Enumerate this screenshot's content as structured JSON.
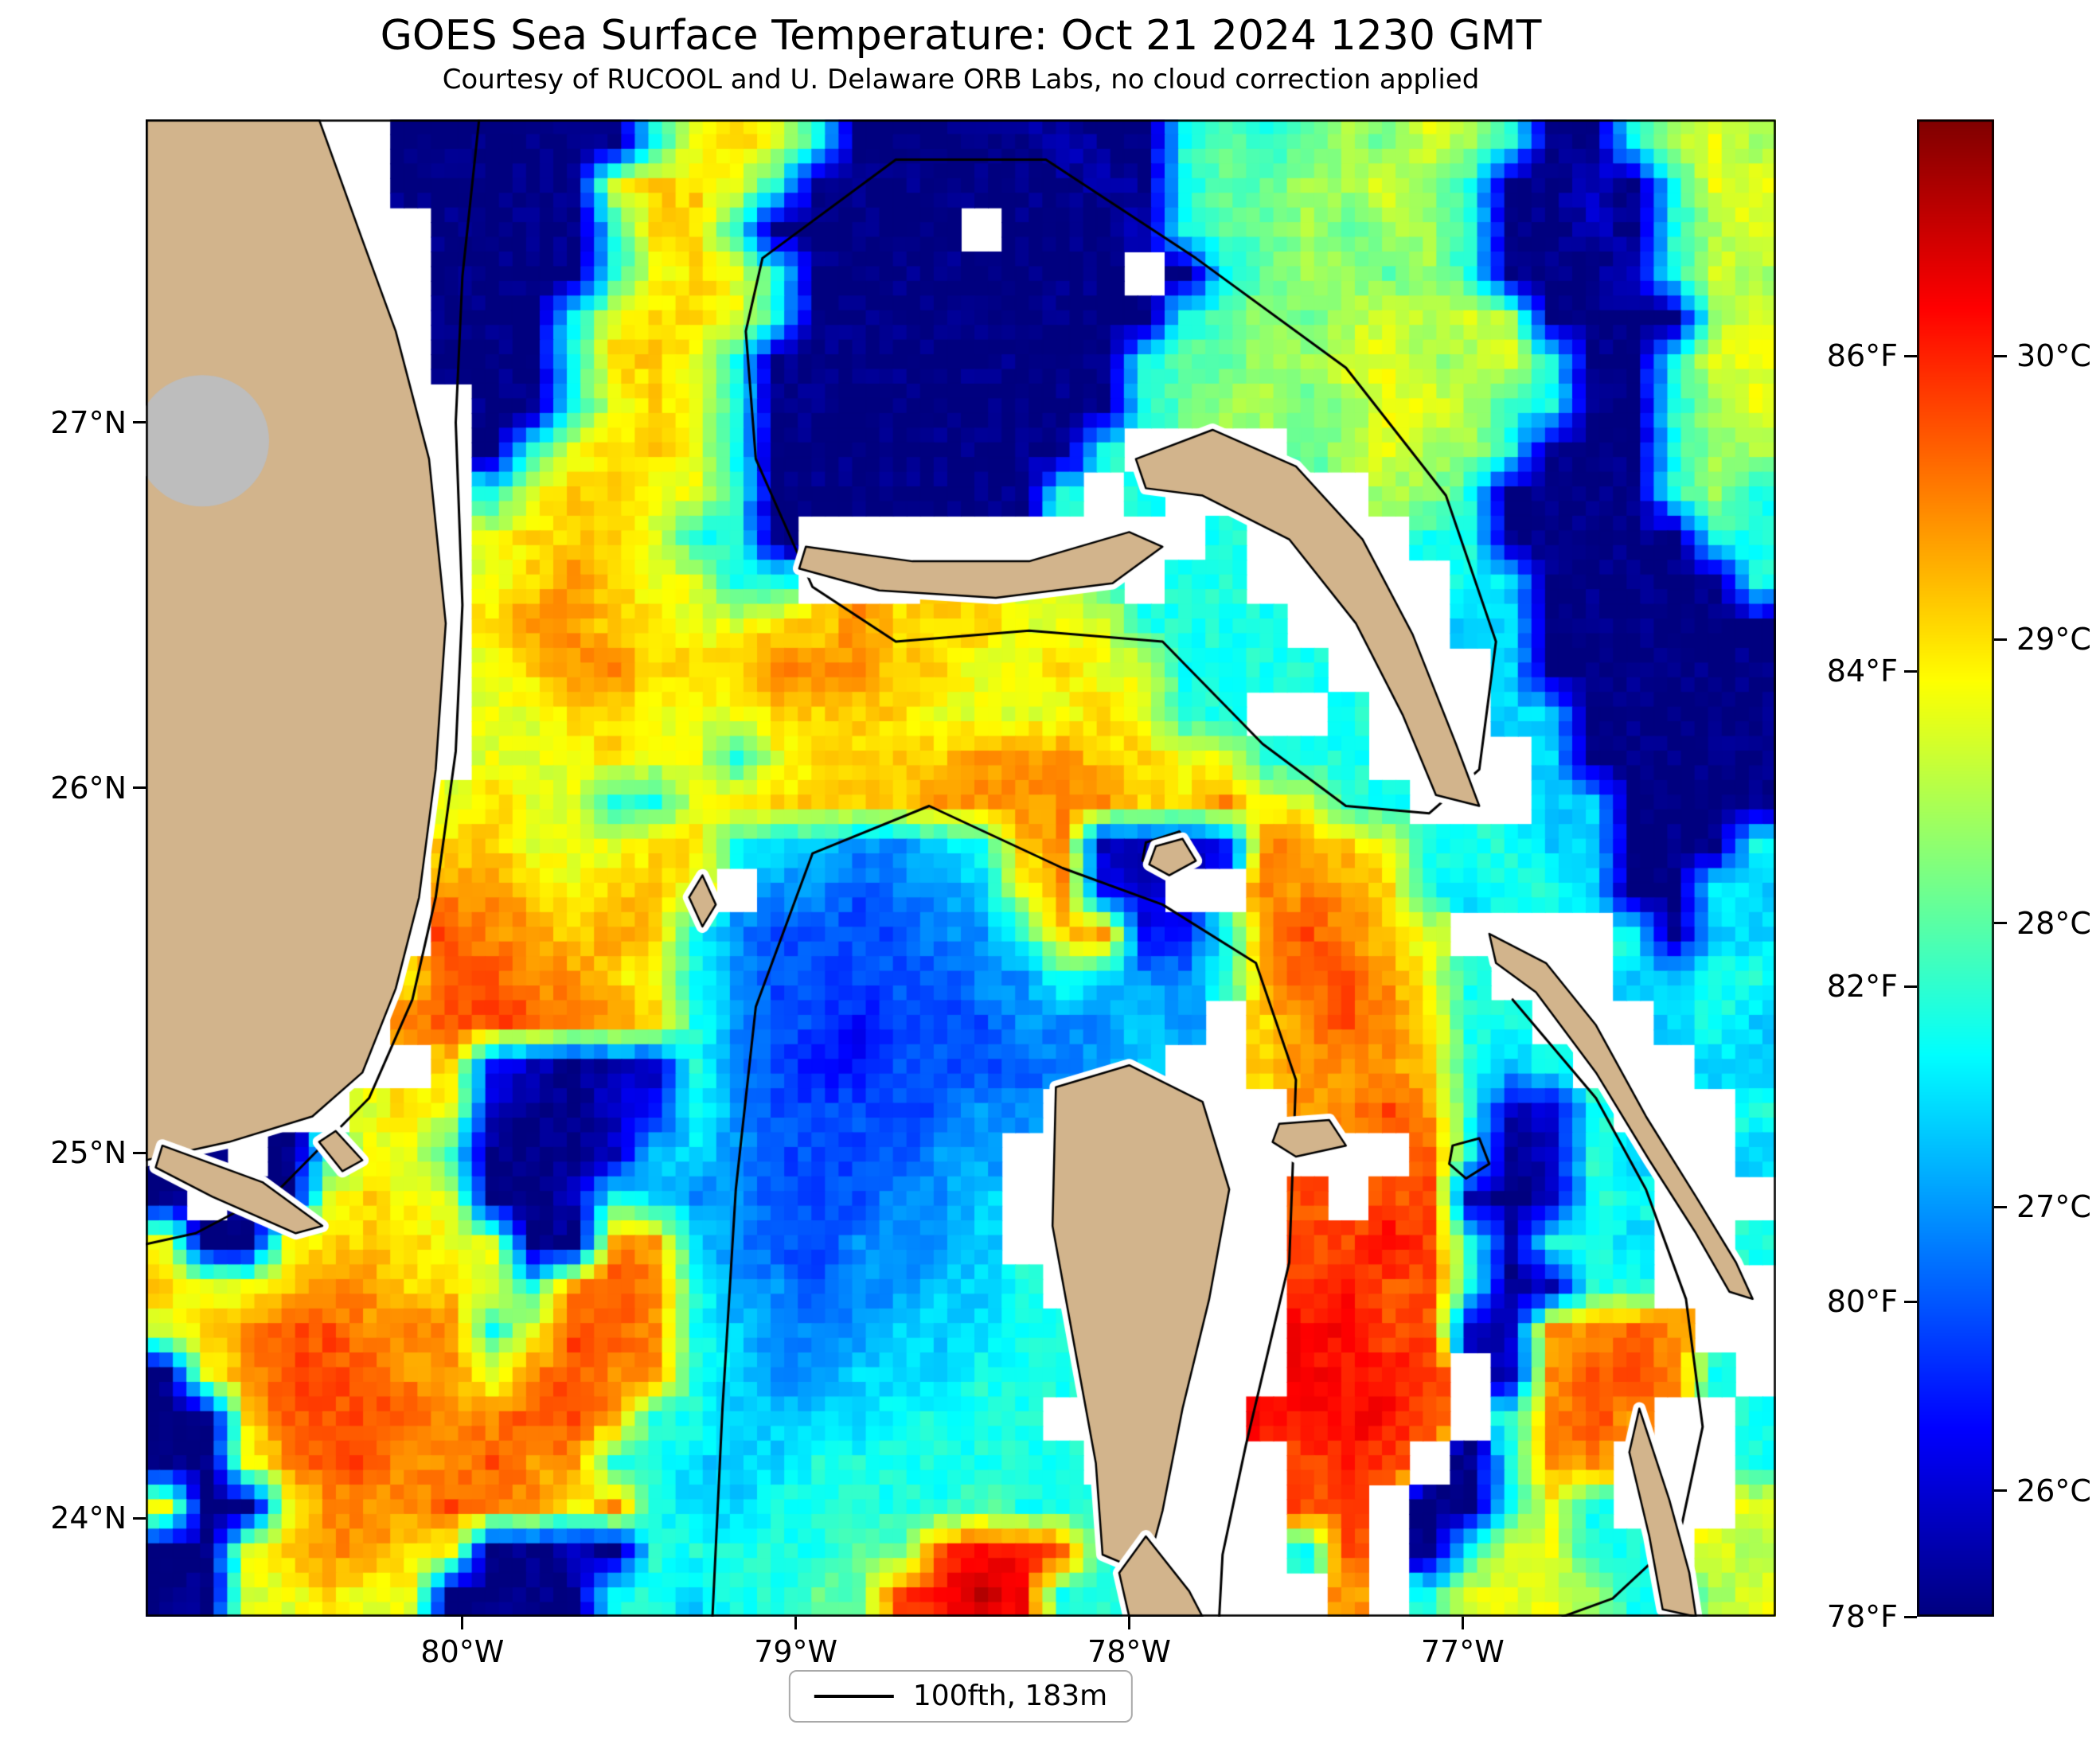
{
  "chart_data": {
    "type": "heatmap",
    "title": "GOES Sea Surface Temperature: Oct 21 2024 1230 GMT",
    "subtitle": "Courtesy of RUCOOL and U. Delaware ORB Labs, no cloud correction applied",
    "legend": {
      "label": "100fth, 183m",
      "line_color": "#000000"
    },
    "extent": {
      "lon_min": -80.95,
      "lon_max": -76.06,
      "lat_min": 23.73,
      "lat_max": 27.83
    },
    "x_axis": {
      "ticks": [
        {
          "value": -80,
          "label": "80°W"
        },
        {
          "value": -79,
          "label": "79°W"
        },
        {
          "value": -78,
          "label": "78°W"
        },
        {
          "value": -77,
          "label": "77°W"
        }
      ]
    },
    "y_axis": {
      "ticks": [
        {
          "value": 27,
          "label": "27°N"
        },
        {
          "value": 26,
          "label": "26°N"
        },
        {
          "value": 25,
          "label": "25°N"
        },
        {
          "value": 24,
          "label": "24°N"
        }
      ]
    },
    "colorbar": {
      "colormap": "jet",
      "min_f": 78,
      "max_f": 87.5,
      "f_ticks": [
        {
          "value": 86,
          "label": "86°F"
        },
        {
          "value": 84,
          "label": "84°F"
        },
        {
          "value": 82,
          "label": "82°F"
        },
        {
          "value": 80,
          "label": "80°F"
        },
        {
          "value": 78,
          "label": "78°F"
        }
      ],
      "c_ticks": [
        {
          "value": 30,
          "label": "30°C"
        },
        {
          "value": 29,
          "label": "29°C"
        },
        {
          "value": 28,
          "label": "28°C"
        },
        {
          "value": 27,
          "label": "27°C"
        },
        {
          "value": 26,
          "label": "26°C"
        }
      ]
    },
    "colors": {
      "land": "#D2B48C",
      "lake": "#BDBDBD",
      "cloud_nodata": "#FFFFFF",
      "coastline": "#000000"
    },
    "grid": {
      "note": "SST field, 40 cols x 34 rows. Hex char 0-F = temperature level from 78F (0, dark blue) to 87.5F (F, dark red) on jet colormap. L=land, W=cloud/no-data(white), G=lake(gray).",
      "cols": 40,
      "rows": 34,
      "rows_data": [
        "LLLLLW00000069A9600000100676787986006898",
        "LLLLLW000009AA96000000010677889860010699",
        "LLLLLLW00006AA600000W0001677878860010689",
        "LLLLLLW000069A9600000000W067887860001698",
        "LLLLLLW00069AA96000000000678789898000089",
        "LLLLLLW0006AA960000000006778899889600699",
        "LGGLLLLW0069A960000000006788789986600689",
        "LGGLLLLW069AA96000000006WLLW789886000688",
        "LGLLLLLW69AA99600000006W6WLLLW8860000686",
        "LLLLLLLW9AAA9660WLLLLLLLLW6WLLW660000066",
        "LLLLLLLW9ABA9966LLWAA996W66WWLLW65000006",
        "LLLLLLLWABBAA99AABAAA9996666WLLW55000000",
        "LLLLLLLW9ABBAAABBBAA99A996666WLLW5000000",
        "LLLLLLLW99AA999AAAA9999A966WW6WLW5500000",
        "LLLLLLLW999A9969AAAABBBAA99666WLLW500000",
        "LLLLLLW9A99669AAAAABBBBBAAB9966WLW550000",
        "LLLLLLWAA999AA6554456AB1112BBA9666550006",
        "LLLLLLWBBA9AA9W4434459B21LWBBBA656650065",
        "LLLLLLWCBBABA643333446AB226BCBA9WLLW6055",
        "LLLLLWACCBBA964333334465446BCCB96WLW5566",
        "LLLLLWBCCCBBA6433233344454WABCBA66WLW565",
        "LLLLLWWA21011643223333445WWABBBA656WLW55",
        "WW0LW9A910012643333344WLLLLWBBCB6116WLW6",
        "00W069960001554333344WLLLLLWWLWC60165LW5",
        "0W009A990016544333445WLLLLLWCWCC10166WLW",
        "9009AAA9900BB54334445WWLLLLWCCDC61665WL6",
        "A99ABBAA96BCB644344556WWLLLWCDCC60166WLW",
        "9ABCCBBB69CCB6544455566WLLLWDDCC11BBCBWL",
        "09BCCCBB9BCBB6544555666WLLWWDDDCW1BCCB6W",
        "00ACCCCBBCCB6655556666WWLLWDDDDCW6BCBWL6",
        "009BCCBBCBB665556666666WWLLWCDCW06BBWLW6",
        "9009BBBCBB9B655666667666WLWWCCW00696WLW9",
        "009ABBA900106666677CDDC6WLLW6CW069966W98",
        "0099A9900006656677CDED66WLLWWBW699986689"
      ]
    },
    "land_polygons": {
      "florida": [
        [
          -80.95,
          27.83
        ],
        [
          -80.43,
          27.83
        ],
        [
          -80.3,
          27.5
        ],
        [
          -80.2,
          27.25
        ],
        [
          -80.1,
          26.9
        ],
        [
          -80.05,
          26.45
        ],
        [
          -80.08,
          26.05
        ],
        [
          -80.13,
          25.7
        ],
        [
          -80.2,
          25.45
        ],
        [
          -80.3,
          25.22
        ],
        [
          -80.45,
          25.1
        ],
        [
          -80.7,
          25.03
        ],
        [
          -80.95,
          24.98
        ]
      ],
      "florida_keys_1": [
        [
          -80.9,
          25.02
        ],
        [
          -80.6,
          24.92
        ],
        [
          -80.42,
          24.8
        ],
        [
          -80.5,
          24.78
        ],
        [
          -80.75,
          24.88
        ],
        [
          -80.92,
          24.96
        ]
      ],
      "florida_keys_2": [
        [
          -80.38,
          25.06
        ],
        [
          -80.3,
          24.98
        ],
        [
          -80.36,
          24.95
        ],
        [
          -80.43,
          25.03
        ]
      ],
      "grand_bahama": [
        [
          -78.97,
          26.66
        ],
        [
          -78.65,
          26.62
        ],
        [
          -78.3,
          26.62
        ],
        [
          -78.0,
          26.7
        ],
        [
          -77.9,
          26.66
        ],
        [
          -78.05,
          26.56
        ],
        [
          -78.4,
          26.52
        ],
        [
          -78.75,
          26.54
        ],
        [
          -78.99,
          26.6
        ]
      ],
      "abaco": [
        [
          -77.98,
          26.9
        ],
        [
          -77.75,
          26.98
        ],
        [
          -77.5,
          26.88
        ],
        [
          -77.3,
          26.68
        ],
        [
          -77.15,
          26.42
        ],
        [
          -77.02,
          26.12
        ],
        [
          -76.95,
          25.95
        ],
        [
          -77.08,
          25.98
        ],
        [
          -77.18,
          26.2
        ],
        [
          -77.32,
          26.45
        ],
        [
          -77.52,
          26.68
        ],
        [
          -77.78,
          26.8
        ],
        [
          -77.95,
          26.82
        ]
      ],
      "andros": [
        [
          -78.22,
          25.18
        ],
        [
          -78.0,
          25.24
        ],
        [
          -77.78,
          25.14
        ],
        [
          -77.7,
          24.9
        ],
        [
          -77.76,
          24.6
        ],
        [
          -77.84,
          24.3
        ],
        [
          -77.9,
          24.02
        ],
        [
          -77.95,
          23.85
        ],
        [
          -78.08,
          23.9
        ],
        [
          -78.1,
          24.15
        ],
        [
          -78.16,
          24.45
        ],
        [
          -78.23,
          24.8
        ]
      ],
      "andros_south": [
        [
          -77.95,
          23.95
        ],
        [
          -77.82,
          23.8
        ],
        [
          -77.78,
          23.73
        ],
        [
          -78.0,
          23.73
        ],
        [
          -78.03,
          23.85
        ]
      ],
      "new_providence": [
        [
          -77.55,
          25.08
        ],
        [
          -77.4,
          25.09
        ],
        [
          -77.35,
          25.02
        ],
        [
          -77.5,
          24.99
        ],
        [
          -77.57,
          25.03
        ]
      ],
      "berry_islands": [
        [
          -77.92,
          25.84
        ],
        [
          -77.84,
          25.86
        ],
        [
          -77.8,
          25.8
        ],
        [
          -77.88,
          25.76
        ],
        [
          -77.94,
          25.79
        ]
      ],
      "bimini": [
        [
          -79.28,
          25.76
        ],
        [
          -79.24,
          25.68
        ],
        [
          -79.28,
          25.62
        ],
        [
          -79.32,
          25.7
        ]
      ],
      "eleuthera_chain": [
        [
          -76.92,
          25.6
        ],
        [
          -76.75,
          25.52
        ],
        [
          -76.6,
          25.35
        ],
        [
          -76.45,
          25.1
        ],
        [
          -76.3,
          24.88
        ],
        [
          -76.18,
          24.7
        ],
        [
          -76.13,
          24.6
        ],
        [
          -76.2,
          24.62
        ],
        [
          -76.3,
          24.78
        ],
        [
          -76.44,
          24.98
        ],
        [
          -76.6,
          25.22
        ],
        [
          -76.78,
          25.44
        ],
        [
          -76.9,
          25.52
        ]
      ],
      "cat_island": [
        [
          -76.47,
          24.3
        ],
        [
          -76.38,
          24.05
        ],
        [
          -76.32,
          23.85
        ],
        [
          -76.3,
          23.73
        ],
        [
          -76.4,
          23.75
        ],
        [
          -76.44,
          23.95
        ],
        [
          -76.5,
          24.18
        ]
      ]
    },
    "lake_okeechobee": {
      "cx": -80.78,
      "cy": 26.95,
      "rx": 0.2,
      "ry": 0.18
    },
    "contours_100fathom": [
      [
        [
          -79.95,
          27.83
        ],
        [
          -80.0,
          27.4
        ],
        [
          -80.02,
          27.0
        ],
        [
          -80.0,
          26.5
        ],
        [
          -80.02,
          26.1
        ],
        [
          -80.08,
          25.7
        ],
        [
          -80.15,
          25.42
        ],
        [
          -80.28,
          25.15
        ],
        [
          -80.55,
          24.9
        ],
        [
          -80.8,
          24.78
        ],
        [
          -80.95,
          24.75
        ]
      ],
      [
        [
          -79.1,
          27.45
        ],
        [
          -78.7,
          27.72
        ],
        [
          -78.25,
          27.72
        ],
        [
          -77.8,
          27.45
        ],
        [
          -77.35,
          27.15
        ],
        [
          -77.05,
          26.8
        ],
        [
          -76.9,
          26.4
        ],
        [
          -76.95,
          26.05
        ],
        [
          -77.1,
          25.93
        ],
        [
          -77.35,
          25.95
        ],
        [
          -77.6,
          26.12
        ],
        [
          -77.9,
          26.4
        ],
        [
          -78.3,
          26.43
        ],
        [
          -78.7,
          26.4
        ],
        [
          -78.95,
          26.55
        ],
        [
          -79.12,
          26.9
        ],
        [
          -79.15,
          27.25
        ],
        [
          -79.1,
          27.45
        ]
      ],
      [
        [
          -79.25,
          23.73
        ],
        [
          -79.22,
          24.3
        ],
        [
          -79.18,
          24.9
        ],
        [
          -79.12,
          25.4
        ],
        [
          -78.95,
          25.82
        ],
        [
          -78.6,
          25.95
        ],
        [
          -78.2,
          25.78
        ],
        [
          -77.9,
          25.68
        ],
        [
          -77.62,
          25.52
        ],
        [
          -77.5,
          25.2
        ],
        [
          -77.52,
          24.7
        ],
        [
          -77.65,
          24.2
        ],
        [
          -77.72,
          23.9
        ],
        [
          -77.73,
          23.73
        ]
      ],
      [
        [
          -76.85,
          25.42
        ],
        [
          -76.6,
          25.15
        ],
        [
          -76.45,
          24.9
        ],
        [
          -76.33,
          24.6
        ],
        [
          -76.28,
          24.25
        ],
        [
          -76.35,
          23.95
        ],
        [
          -76.55,
          23.78
        ],
        [
          -76.7,
          23.73
        ]
      ],
      [
        [
          -77.95,
          25.85
        ],
        [
          -77.85,
          25.88
        ],
        [
          -77.8,
          25.82
        ],
        [
          -77.88,
          25.77
        ],
        [
          -77.96,
          25.8
        ],
        [
          -77.95,
          25.85
        ]
      ],
      [
        [
          -77.03,
          25.02
        ],
        [
          -76.95,
          25.04
        ],
        [
          -76.92,
          24.97
        ],
        [
          -76.99,
          24.93
        ],
        [
          -77.04,
          24.97
        ],
        [
          -77.03,
          25.02
        ]
      ]
    ]
  }
}
